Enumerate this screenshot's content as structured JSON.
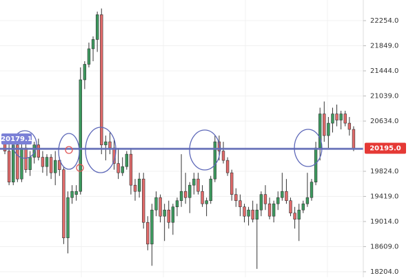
{
  "chart_data": {
    "type": "candlestick",
    "up_color": "#3d9a5f",
    "down_color": "#e06a6a",
    "ylim": [
      18115,
      22587
    ],
    "yticks": [
      {
        "value": 22254,
        "label": "22254.0"
      },
      {
        "value": 21849,
        "label": "21849.0"
      },
      {
        "value": 21444,
        "label": "21444.0"
      },
      {
        "value": 21039,
        "label": "21039.0"
      },
      {
        "value": 20634,
        "label": "20634.0"
      },
      {
        "value": 19824,
        "label": "19824.0"
      },
      {
        "value": 19419,
        "label": "19419.0"
      },
      {
        "value": 19014,
        "label": "19014.0"
      },
      {
        "value": 18609,
        "label": "18609.0"
      },
      {
        "value": 18204,
        "label": "18204.0"
      }
    ],
    "grid": true,
    "price_labels": [
      {
        "value": 20195,
        "label": "20195.0",
        "color": "#e53935",
        "side": "right"
      },
      {
        "value": 20179.1,
        "label": "20179.1",
        "color": "#7b80d6",
        "side": "left"
      }
    ],
    "open": [
      20300,
      20150,
      19650,
      20250,
      19700,
      20200,
      19850,
      20050,
      20250,
      20050,
      19900,
      20050,
      19800,
      20000,
      19850,
      18750,
      19400,
      19450,
      19500,
      21300,
      21550,
      21800,
      21950,
      22350,
      20250,
      20300,
      20200,
      19950,
      19800,
      19900,
      20100,
      19600,
      19500,
      19700,
      19000,
      18650,
      19200,
      19400,
      19100,
      19200,
      19000,
      19250,
      19350,
      19500,
      19400,
      19600,
      19700,
      19500,
      19300,
      19350,
      19700,
      20300,
      20150,
      20000,
      19800,
      19450,
      19350,
      19250,
      19100,
      19200,
      19050,
      19200,
      19450,
      19300,
      19100,
      19300,
      19400,
      19500,
      19350,
      19150,
      19050,
      19200,
      19300,
      19400,
      19650,
      20200,
      20750,
      20400,
      20600,
      20750,
      20650,
      20750,
      20600,
      20500
    ],
    "high": [
      20400,
      20350,
      20300,
      20400,
      20300,
      20380,
      20150,
      20300,
      20350,
      20150,
      20100,
      20100,
      20150,
      20050,
      19900,
      19500,
      19600,
      19600,
      21500,
      21600,
      21900,
      22000,
      22400,
      22450,
      20400,
      20450,
      20350,
      20200,
      20050,
      20150,
      20200,
      19700,
      19800,
      19800,
      19100,
      19300,
      19500,
      19450,
      19300,
      19350,
      19300,
      19400,
      20100,
      19800,
      19650,
      19800,
      19800,
      19600,
      19400,
      19750,
      20400,
      20400,
      20300,
      20050,
      19850,
      19550,
      19450,
      19300,
      19250,
      19350,
      19300,
      19500,
      19600,
      19400,
      19350,
      19500,
      19800,
      19700,
      19400,
      19250,
      19300,
      19350,
      19800,
      19700,
      20300,
      20850,
      20950,
      20700,
      20850,
      20900,
      20800,
      20800,
      20700,
      20550
    ],
    "low": [
      20100,
      19600,
      19600,
      19650,
      19650,
      19800,
      19750,
      19950,
      20000,
      19800,
      19750,
      19700,
      19600,
      19750,
      18650,
      18500,
      19300,
      19350,
      19450,
      21150,
      21500,
      21600,
      21750,
      20100,
      20000,
      20100,
      19850,
      19700,
      19750,
      19850,
      19450,
      19350,
      19400,
      18900,
      18550,
      18300,
      19100,
      19000,
      18700,
      18900,
      18800,
      19100,
      19250,
      19300,
      19150,
      19450,
      19450,
      19250,
      19100,
      19300,
      19650,
      20000,
      19950,
      19750,
      19350,
      19250,
      19100,
      19000,
      18950,
      19000,
      18250,
      19100,
      19200,
      19050,
      19000,
      19200,
      19350,
      19300,
      19100,
      18900,
      18700,
      19150,
      19250,
      19350,
      19600,
      20000,
      20300,
      20200,
      20450,
      20550,
      20500,
      20550,
      20400,
      20150
    ],
    "close": [
      20150,
      19650,
      20250,
      19700,
      20200,
      19850,
      20050,
      20250,
      20050,
      19900,
      20050,
      19800,
      20000,
      19850,
      18750,
      19400,
      19500,
      19500,
      21300,
      21550,
      21800,
      21950,
      22350,
      20250,
      20300,
      20200,
      19950,
      19800,
      19900,
      20100,
      19600,
      19500,
      19700,
      19000,
      18650,
      19200,
      19400,
      19100,
      19200,
      19000,
      19250,
      19350,
      19500,
      19400,
      19600,
      19700,
      19500,
      19300,
      19350,
      19700,
      20300,
      20150,
      20000,
      19800,
      19450,
      19350,
      19250,
      19100,
      19200,
      19050,
      19200,
      19450,
      19300,
      19100,
      19300,
      19400,
      19500,
      19350,
      19150,
      19050,
      19200,
      19300,
      19400,
      19650,
      20200,
      20750,
      20400,
      20600,
      20750,
      20650,
      20750,
      20600,
      20500,
      20195
    ]
  }
}
